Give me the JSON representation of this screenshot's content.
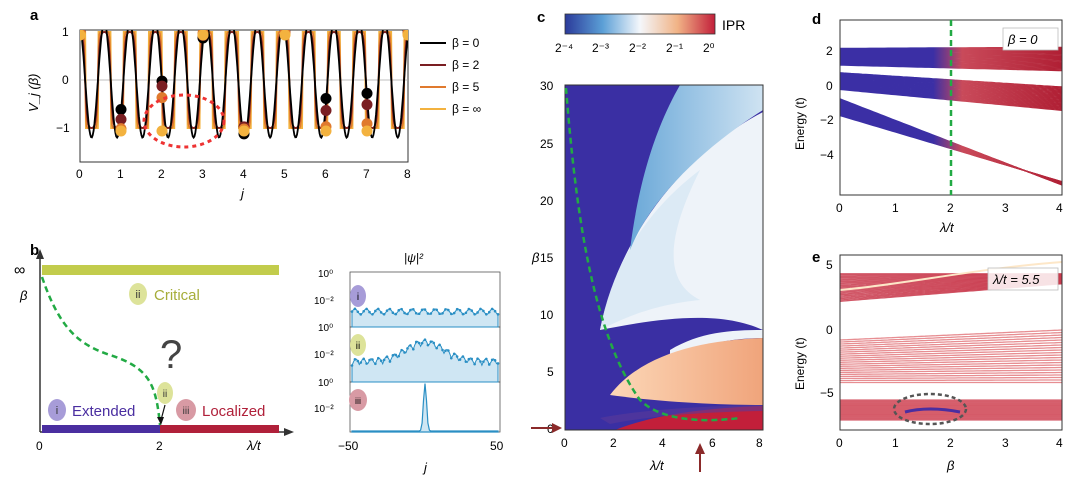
{
  "panels": {
    "a": {
      "label": "a",
      "ylabel": "V_j (β)",
      "xlabel": "j",
      "xticks": [
        "0",
        "1",
        "2",
        "3",
        "4",
        "5",
        "6",
        "7",
        "8"
      ],
      "yticks": [
        "1",
        "0",
        "−1"
      ],
      "legend": [
        "β = 0",
        "β = 2",
        "β = 5",
        "β = ∞"
      ],
      "colors": [
        "#000000",
        "#7a1e22",
        "#e07a2e",
        "#f3b23f"
      ]
    },
    "b": {
      "label": "b",
      "yaxis_top": "∞",
      "yaxis": "β",
      "xticks": [
        "0",
        "2"
      ],
      "xlabel": "λ/t",
      "question": "?",
      "phases": [
        {
          "numeral": "i",
          "text": "Extended"
        },
        {
          "numeral": "ii",
          "text": "Critical"
        },
        {
          "numeral": "iii",
          "text": "Localized"
        }
      ],
      "marker_ii": "ii",
      "psi_title": "|ψ|²",
      "psi_numerals": [
        "i",
        "ii",
        "iii"
      ],
      "psi_yticks": [
        "10⁰",
        "10⁻²"
      ],
      "psi_xticks": [
        "−50",
        "50"
      ],
      "psi_xlabel": "j"
    },
    "c": {
      "label": "c",
      "colorbar_title": "IPR",
      "colorbar_ticks": [
        "2⁻⁴",
        "2⁻³",
        "2⁻²",
        "2⁻¹",
        "2⁰"
      ],
      "ylabel": "β",
      "yticks": [
        "30",
        "25",
        "20",
        "15",
        "10",
        "5",
        "0"
      ],
      "xlabel": "λ/t",
      "xticks": [
        "0",
        "2",
        "4",
        "6",
        "8"
      ]
    },
    "d": {
      "label": "d",
      "ylabel": "Energy (t)",
      "xlabel": "λ/t",
      "yticks": [
        "2",
        "0",
        "−2",
        "−4"
      ],
      "xticks": [
        "0",
        "1",
        "2",
        "3",
        "4"
      ],
      "annotation": "β = 0"
    },
    "e": {
      "label": "e",
      "ylabel": "Energy (t)",
      "xlabel": "β",
      "yticks": [
        "5",
        "0",
        "−5"
      ],
      "xticks": [
        "0",
        "1",
        "2",
        "3",
        "4"
      ],
      "annotation": "λ/t = 5.5"
    }
  },
  "colors": {
    "extended": "#4a2ea0",
    "localized": "#b0203a",
    "critical": "#c2cc4c",
    "dashed": "#22aa44",
    "psi": "#2a8fc4"
  }
}
